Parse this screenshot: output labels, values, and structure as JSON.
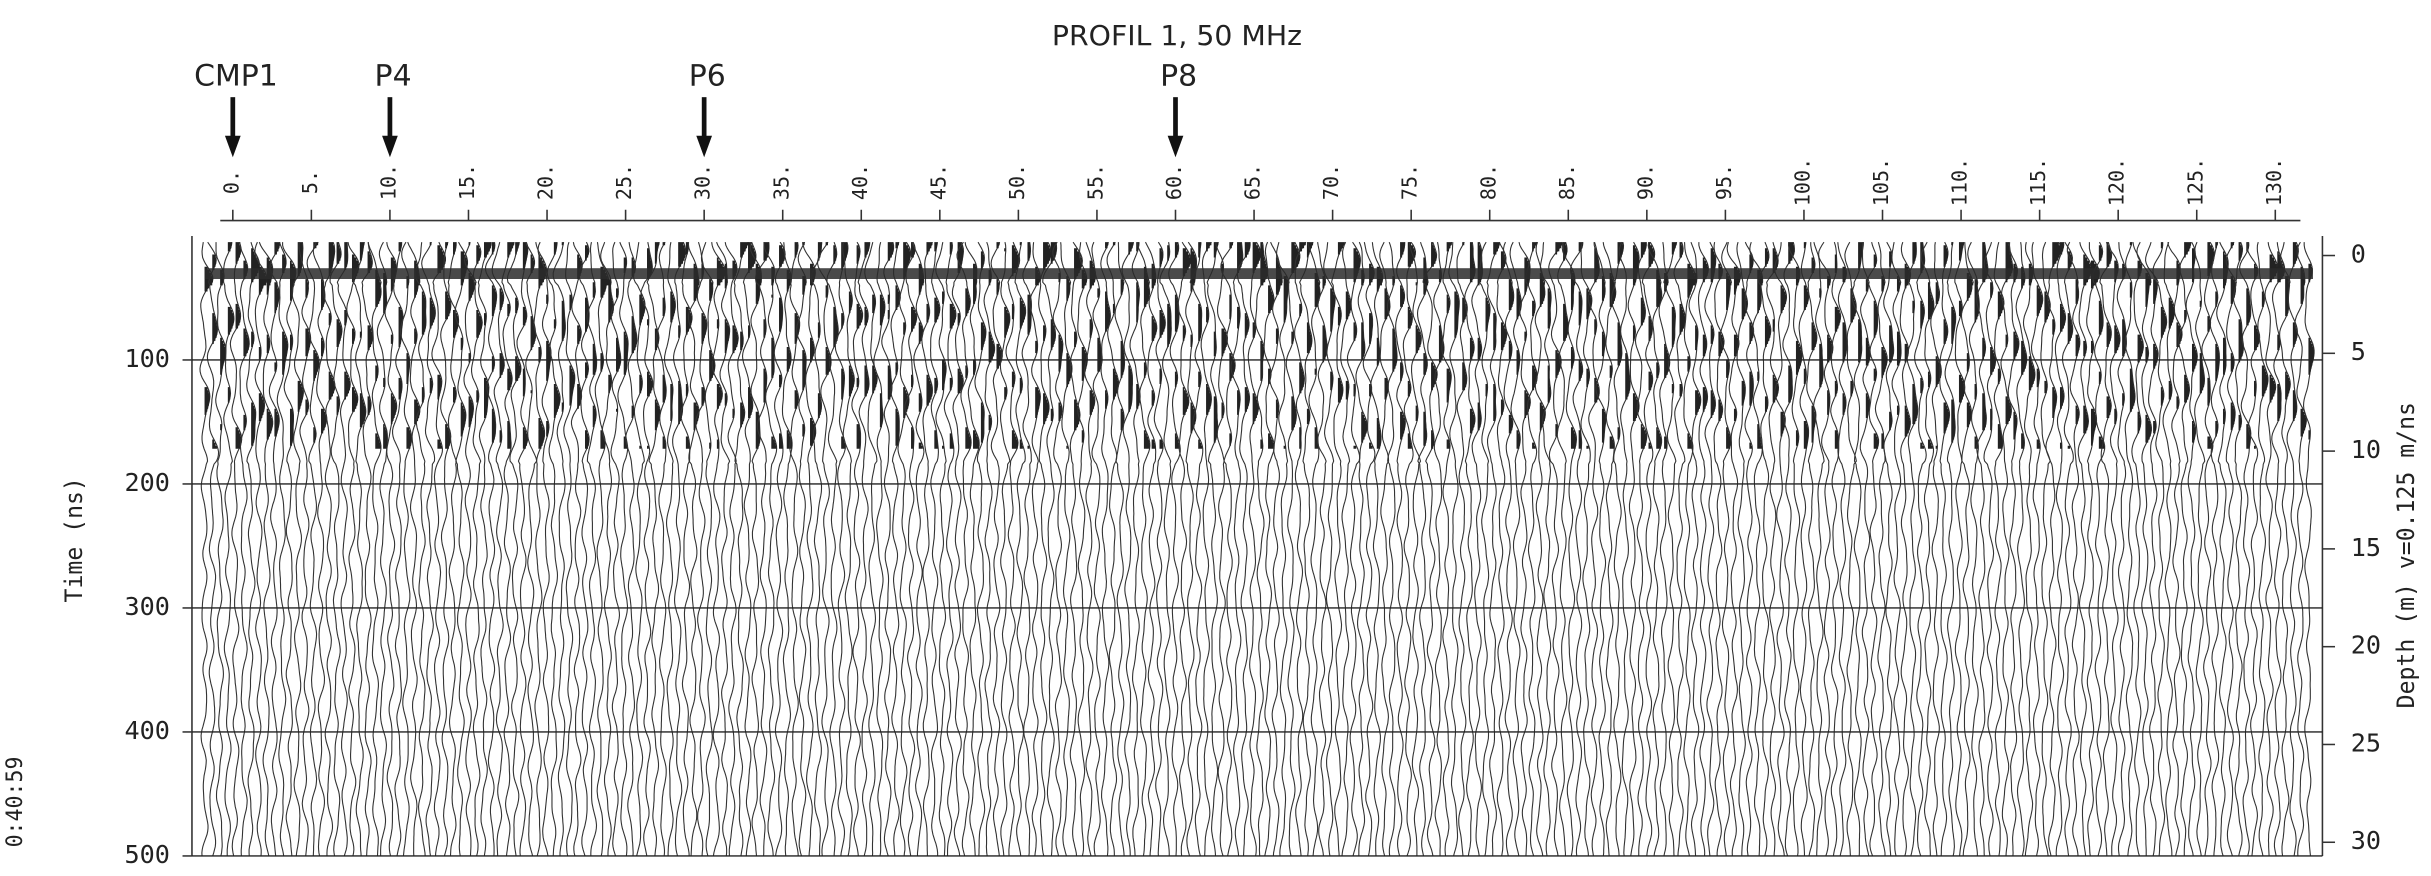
{
  "chart_data": {
    "type": "radargram",
    "title": "PROFIL 1, 50 MHz",
    "xlim": [
      -2.6,
      133
    ],
    "xticks": [
      {
        "value": 0,
        "label": "0."
      },
      {
        "value": 5,
        "label": "5."
      },
      {
        "value": 10,
        "label": "10."
      },
      {
        "value": 15,
        "label": "15."
      },
      {
        "value": 20,
        "label": "20."
      },
      {
        "value": 25,
        "label": "25."
      },
      {
        "value": 30,
        "label": "30."
      },
      {
        "value": 35,
        "label": "35."
      },
      {
        "value": 40,
        "label": "40."
      },
      {
        "value": 45,
        "label": "45."
      },
      {
        "value": 50,
        "label": "50."
      },
      {
        "value": 55,
        "label": "55."
      },
      {
        "value": 60,
        "label": "60."
      },
      {
        "value": 65,
        "label": "65."
      },
      {
        "value": 70,
        "label": "70."
      },
      {
        "value": 75,
        "label": "75."
      },
      {
        "value": 80,
        "label": "80."
      },
      {
        "value": 85,
        "label": "85."
      },
      {
        "value": 90,
        "label": "90."
      },
      {
        "value": 95,
        "label": "95."
      },
      {
        "value": 100,
        "label": "100."
      },
      {
        "value": 105,
        "label": "105."
      },
      {
        "value": 110,
        "label": "110."
      },
      {
        "value": 115,
        "label": "115."
      },
      {
        "value": 120,
        "label": "120."
      },
      {
        "value": 125,
        "label": "125."
      },
      {
        "value": 130,
        "label": "130."
      }
    ],
    "ylabel": "Time (ns)",
    "ylim": [
      0,
      500
    ],
    "yticks": [
      100,
      200,
      300,
      400,
      500
    ],
    "y2label": "Depth (m) v=0.125 m/ns",
    "y2lim": [
      -1.0,
      30.7
    ],
    "y2ticks": [
      0,
      5,
      10,
      15,
      20,
      25,
      30
    ],
    "grid": true,
    "annotations": [
      {
        "text": "CMP1",
        "x": 0
      },
      {
        "text": "P4",
        "x": 10
      },
      {
        "text": "P6",
        "x": 30
      },
      {
        "text": "P8",
        "x": 60
      }
    ],
    "timestamp": "0:40:59"
  }
}
